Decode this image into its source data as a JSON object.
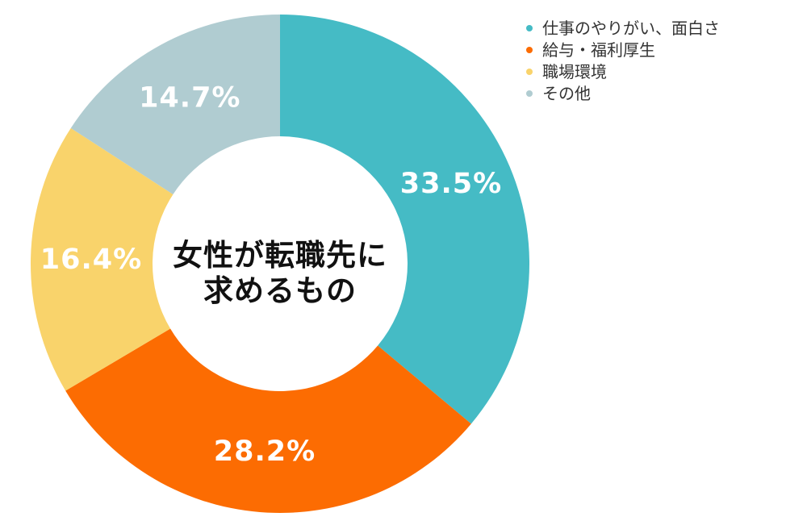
{
  "chart_data": {
    "type": "pie",
    "variant": "donut",
    "title": "女性が転職先に求めるもの",
    "center_title_lines": [
      "女性が転職先に",
      "求めるもの"
    ],
    "start_angle_deg": 0,
    "direction": "clockwise",
    "legend_position": "top-right",
    "label_color": "#FFFFFF",
    "background_color": "#FFFFFF",
    "segments": [
      {
        "id": "work-fulfillment",
        "label": "仕事のやりがい、面白さ",
        "value": 33.5,
        "display": "33.5%",
        "color": "#45BBC5"
      },
      {
        "id": "salary-benefits",
        "label": "給与・福利厚生",
        "value": 28.2,
        "display": "28.2%",
        "color": "#FC6C02"
      },
      {
        "id": "workplace-environment",
        "label": "職場環境",
        "value": 16.4,
        "display": "16.4%",
        "color": "#F9D36B"
      },
      {
        "id": "other",
        "label": "その他",
        "value": 14.7,
        "display": "14.7%",
        "color": "#B0CCD1"
      }
    ]
  }
}
